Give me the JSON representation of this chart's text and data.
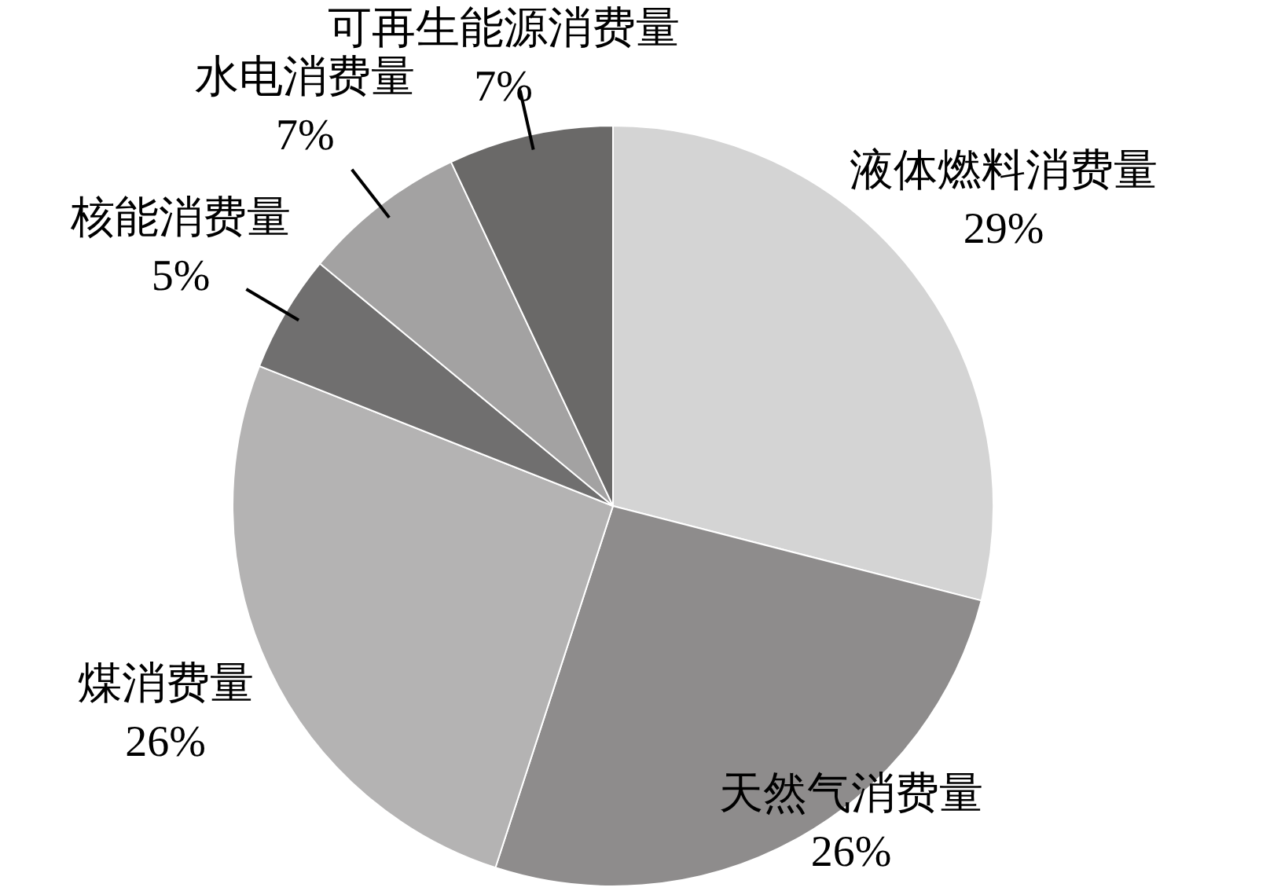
{
  "chart_data": {
    "type": "pie",
    "categories": [
      "液体燃料消费量",
      "天然气消费量",
      "煤消费量",
      "核能消费量",
      "水电消费量",
      "可再生能源消费量"
    ],
    "values": [
      29,
      26,
      26,
      5,
      7,
      7
    ],
    "value_labels": [
      "29%",
      "26%",
      "26%",
      "5%",
      "7%",
      "7%"
    ],
    "colors": [
      "#d4d4d4",
      "#8e8c8c",
      "#b4b3b3",
      "#706f6f",
      "#a3a2a2",
      "#6a6968"
    ]
  }
}
